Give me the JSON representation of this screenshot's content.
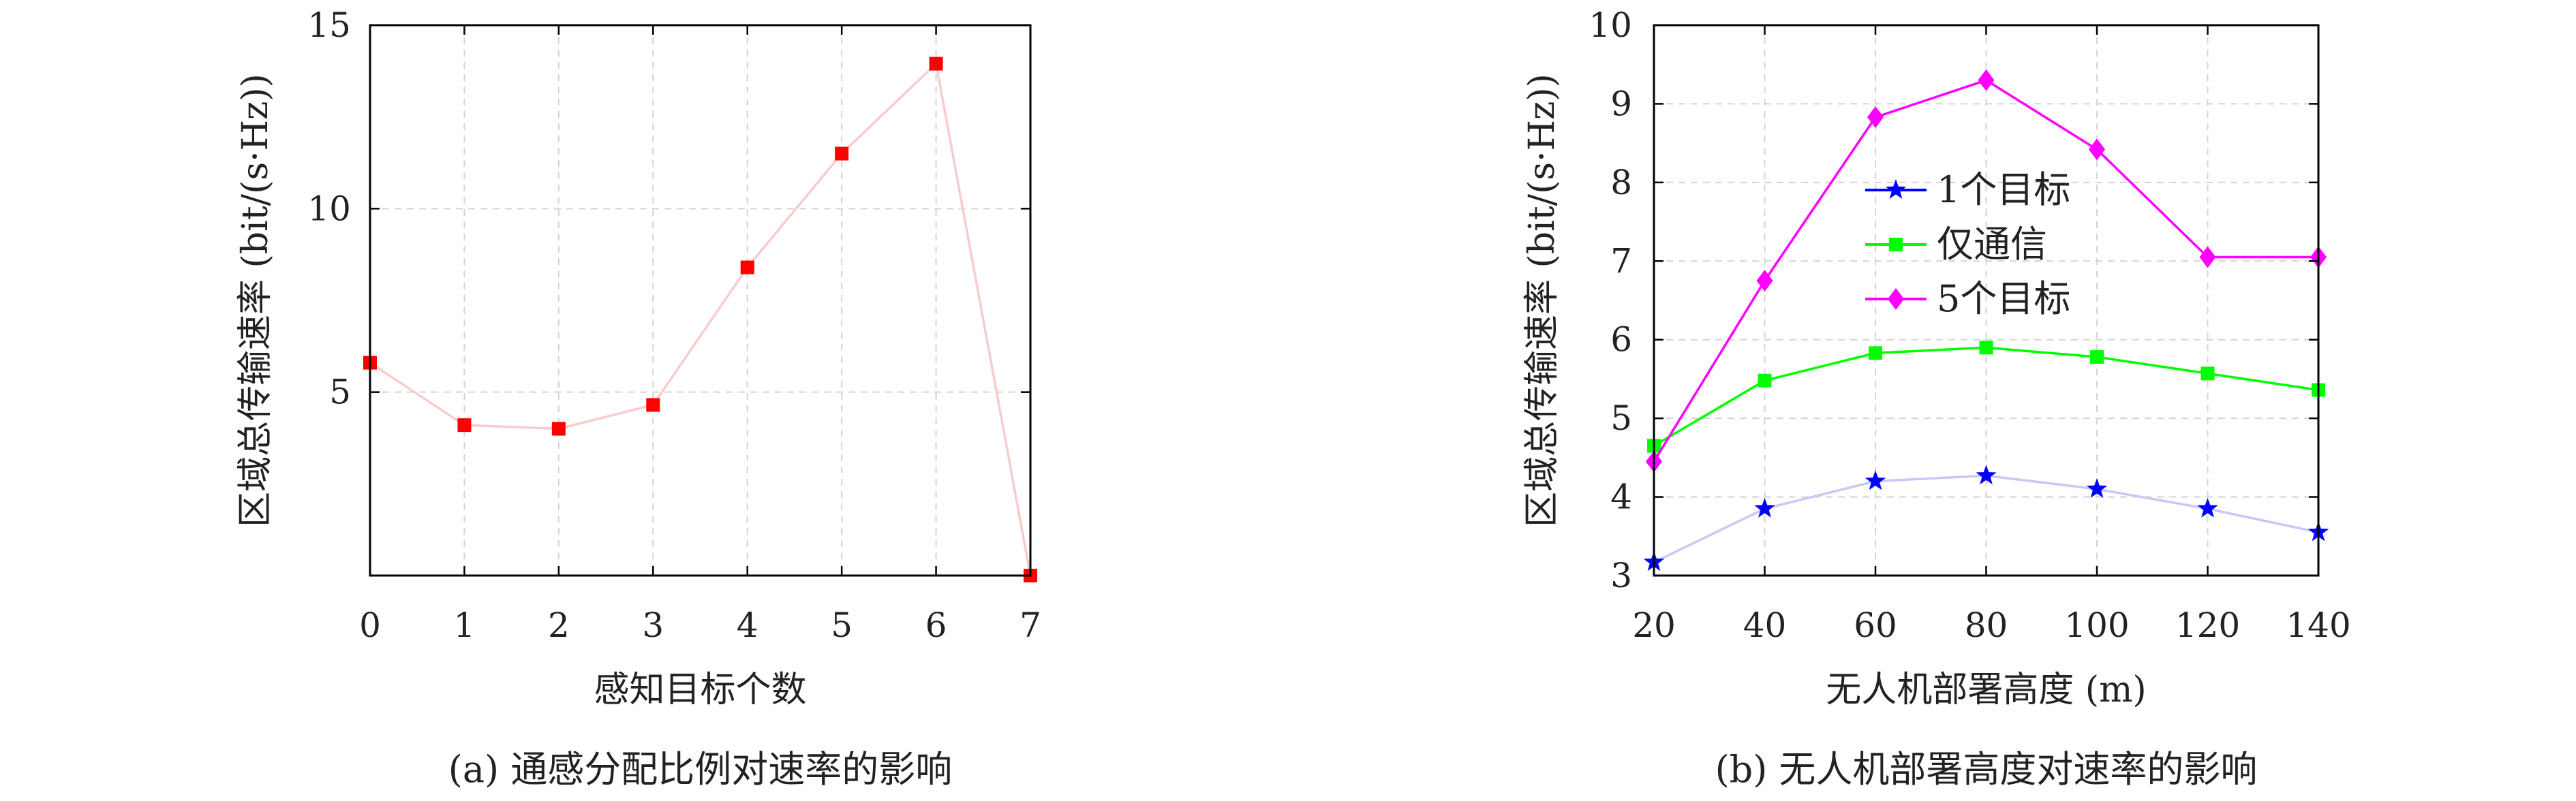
{
  "chart_data": [
    {
      "type": "line",
      "caption": "(a) 通感分配比例对速率的影响",
      "xlabel": "感知目标个数",
      "ylabel": "区域总传输速率 (bit/(s·Hz))",
      "xlim": [
        0,
        7
      ],
      "ylim": [
        0,
        15
      ],
      "x_ticks": [
        0,
        1,
        2,
        3,
        4,
        5,
        6,
        7
      ],
      "y_ticks": [
        5,
        10,
        15
      ],
      "grid": true,
      "series": [
        {
          "name": "",
          "color": "#ff0000",
          "line_color": "#f8cccc",
          "marker": "square",
          "x": [
            0,
            1,
            2,
            3,
            4,
            5,
            6,
            7
          ],
          "y": [
            5.8,
            4.1,
            4.0,
            4.65,
            8.4,
            11.5,
            13.95,
            0.0
          ]
        }
      ]
    },
    {
      "type": "line",
      "caption": "(b) 无人机部署高度对速率的影响",
      "xlabel": "无人机部署高度 (m)",
      "ylabel": "区域总传输速率 (bit/(s·Hz))",
      "xlim": [
        20,
        140
      ],
      "ylim": [
        3,
        10
      ],
      "x_ticks": [
        20,
        40,
        60,
        80,
        100,
        120,
        140
      ],
      "y_ticks": [
        3,
        4,
        5,
        6,
        7,
        8,
        9,
        10
      ],
      "grid": true,
      "legend_position": "upper-left",
      "series": [
        {
          "name": "1个目标",
          "color": "#0000ff",
          "line_color": "#c8c8f8",
          "marker": "star",
          "x": [
            20,
            40,
            60,
            80,
            100,
            120,
            140
          ],
          "y": [
            3.17,
            3.85,
            4.2,
            4.27,
            4.1,
            3.85,
            3.55
          ]
        },
        {
          "name": "仅通信",
          "color": "#00ff00",
          "line_color": "#00ff00",
          "marker": "square",
          "x": [
            20,
            40,
            60,
            80,
            100,
            120,
            140
          ],
          "y": [
            4.65,
            5.48,
            5.83,
            5.9,
            5.78,
            5.57,
            5.36
          ]
        },
        {
          "name": "5个目标",
          "color": "#ff00ff",
          "line_color": "#ff00ff",
          "marker": "diamond",
          "x": [
            20,
            40,
            60,
            80,
            100,
            120,
            140
          ],
          "y": [
            4.45,
            6.75,
            8.83,
            9.3,
            8.42,
            7.05,
            7.05
          ]
        }
      ]
    }
  ]
}
